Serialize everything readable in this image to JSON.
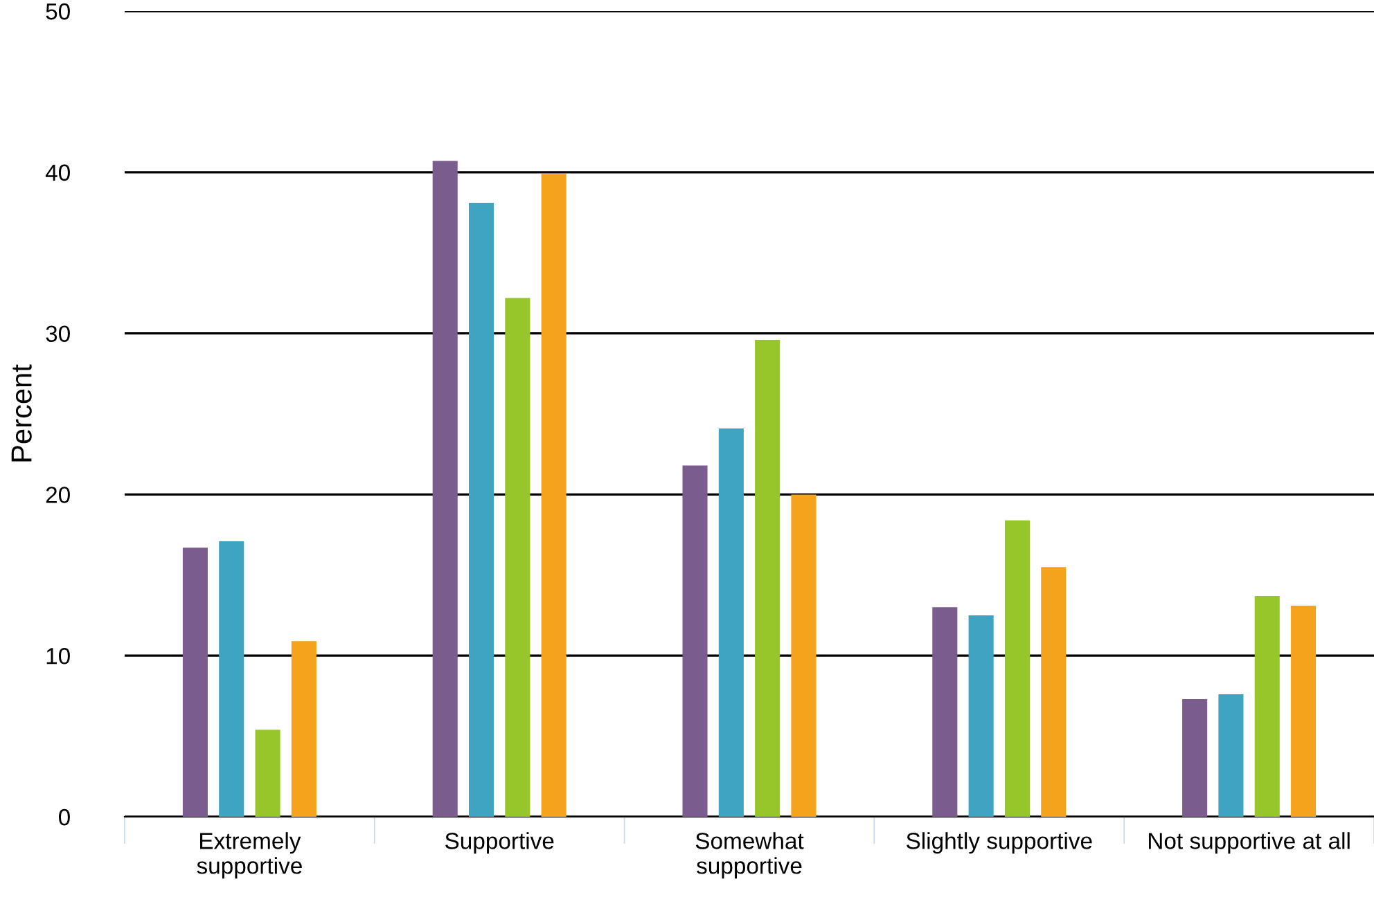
{
  "chart_data": {
    "type": "bar",
    "ylabel": "Percent",
    "categories": [
      "Extremely\nsupportive",
      "Supportive",
      "Somewhat\nsupportive",
      "Slightly supportive",
      "Not supportive at all"
    ],
    "series": [
      {
        "color": "#7b5c8e",
        "values": [
          16.7,
          40.7,
          21.8,
          13.0,
          7.3
        ]
      },
      {
        "color": "#3fa4c1",
        "values": [
          17.1,
          38.1,
          24.1,
          12.5,
          7.6
        ]
      },
      {
        "color": "#97c62a",
        "values": [
          5.4,
          32.2,
          29.6,
          18.4,
          13.7
        ]
      },
      {
        "color": "#f5a21c",
        "values": [
          10.9,
          39.9,
          20.0,
          15.5,
          13.1
        ]
      }
    ],
    "ylim": [
      0,
      50
    ],
    "yticks": [
      0,
      10,
      20,
      30,
      40,
      50
    ],
    "grid": "y",
    "legend": false
  }
}
